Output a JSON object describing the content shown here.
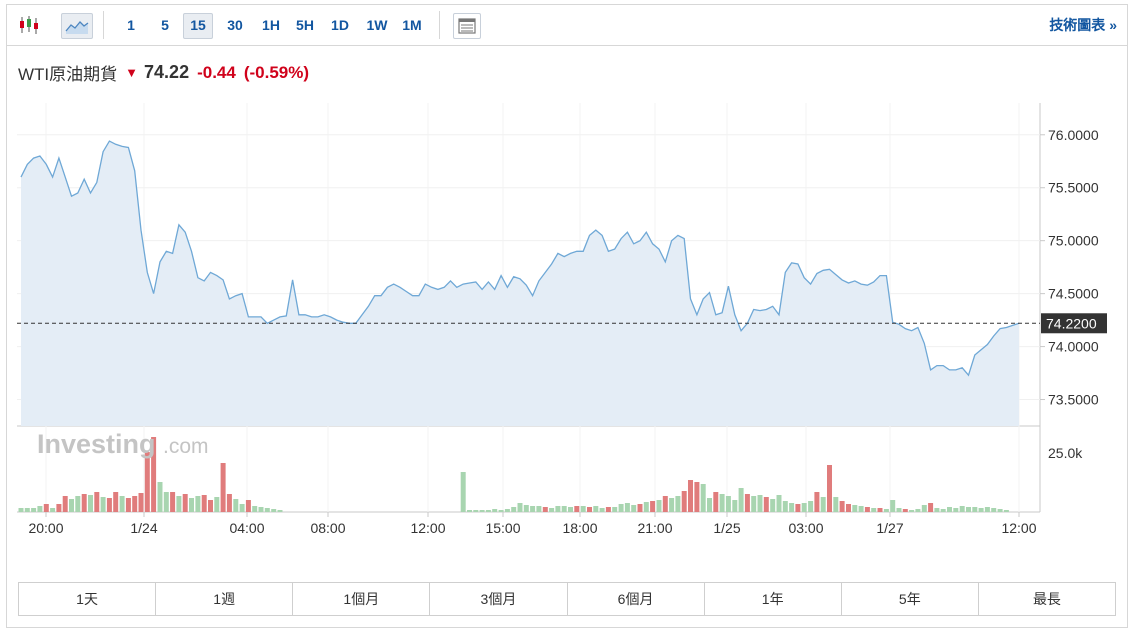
{
  "toolbar": {
    "chart_type_icons": [
      "candlestick-icon",
      "area-chart-icon"
    ],
    "intervals": [
      "1",
      "5",
      "15",
      "30",
      "1H",
      "5H",
      "1D",
      "1W",
      "1M"
    ],
    "active_interval": "15",
    "table_icon": "data-table-icon",
    "tech_link": "技術圖表 »"
  },
  "instrument": {
    "name": "WTI原油期貨",
    "direction_icon": "down-arrow-icon",
    "price": "74.22",
    "change": "-0.44",
    "change_pct": "(-0.59%)"
  },
  "watermark": {
    "brand": "Investing",
    "suffix": ".com"
  },
  "ranges": [
    "1天",
    "1週",
    "1個月",
    "3個月",
    "6個月",
    "1年",
    "5年",
    "最長"
  ],
  "colors": {
    "line": "#6fa8d6",
    "area": "#e4edf6",
    "vol_up": "#a8d5b0",
    "vol_down": "#e07c7c",
    "down": "#d0021b",
    "link": "#1256a0"
  },
  "chart_data": {
    "type": "area",
    "current_value_label": "74.2200",
    "y_ticks": [
      "76.0000",
      "75.5000",
      "75.0000",
      "74.5000",
      "74.0000",
      "73.5000"
    ],
    "ylim": [
      73.25,
      76.3
    ],
    "volume_tick": "25.0k",
    "x_tick_labels": [
      "20:00",
      "1/24",
      "04:00",
      "08:00",
      "12:00",
      "15:00",
      "18:00",
      "21:00",
      "1/25",
      "03:00",
      "1/27",
      "12:00"
    ],
    "price": [
      75.6,
      75.72,
      75.78,
      75.8,
      75.72,
      75.6,
      75.78,
      75.6,
      75.42,
      75.45,
      75.58,
      75.45,
      75.55,
      75.84,
      75.94,
      75.91,
      75.89,
      75.88,
      75.66,
      75.1,
      74.7,
      74.5,
      74.8,
      74.9,
      74.88,
      75.15,
      75.08,
      74.9,
      74.65,
      74.62,
      74.7,
      74.67,
      74.63,
      74.45,
      74.48,
      74.5,
      74.28,
      74.28,
      74.28,
      74.22,
      74.25,
      74.28,
      74.29,
      74.63,
      74.3,
      74.3,
      74.28,
      74.28,
      74.3,
      74.28,
      74.25,
      74.23,
      74.22,
      74.22,
      74.3,
      74.38,
      74.48,
      74.48,
      74.56,
      74.59,
      74.56,
      74.52,
      74.48,
      74.48,
      74.59,
      74.56,
      74.54,
      74.56,
      74.62,
      74.56,
      74.59,
      74.6,
      74.61,
      74.54,
      74.61,
      74.54,
      74.67,
      74.56,
      74.66,
      74.64,
      74.58,
      74.48,
      74.62,
      74.7,
      74.78,
      74.88,
      74.85,
      74.88,
      74.9,
      74.9,
      75.05,
      75.1,
      75.05,
      74.9,
      74.92,
      75.02,
      75.08,
      74.97,
      75.0,
      75.08,
      74.97,
      74.92,
      74.8,
      75.0,
      75.05,
      75.02,
      74.45,
      74.3,
      74.45,
      74.51,
      74.3,
      74.32,
      74.57,
      74.3,
      74.15,
      74.22,
      74.35,
      74.34,
      74.35,
      74.38,
      74.3,
      74.7,
      74.79,
      74.78,
      74.65,
      74.59,
      74.69,
      74.72,
      74.73,
      74.68,
      74.63,
      74.6,
      74.62,
      74.59,
      74.58,
      74.61,
      74.67,
      74.67,
      74.23,
      74.21,
      74.17,
      74.15,
      74.18,
      74.03,
      73.78,
      73.82,
      73.82,
      73.78,
      73.78,
      73.8,
      73.73,
      73.92,
      73.97,
      74.02,
      74.1,
      74.17,
      74.18,
      74.2,
      74.22
    ],
    "volume": [
      0.4,
      0.4,
      0.4,
      0.6,
      0.8,
      0.4,
      0.8,
      1.6,
      1.3,
      1.6,
      1.8,
      1.7,
      2.0,
      1.5,
      1.4,
      2.0,
      1.6,
      1.4,
      1.6,
      1.9,
      6.0,
      7.5,
      3.0,
      2.0,
      2.0,
      1.6,
      1.8,
      1.4,
      1.6,
      1.7,
      1.2,
      1.5,
      4.9,
      1.8,
      1.3,
      0.8,
      1.2,
      0.6,
      0.5,
      0.4,
      0.3,
      0.2,
      0,
      0,
      0,
      0,
      0,
      0,
      0,
      0,
      0,
      0,
      0,
      0,
      0,
      0,
      0,
      0,
      0,
      0,
      0,
      0,
      0,
      0,
      0,
      0,
      0,
      0,
      0,
      0,
      4.0,
      0.2,
      0.2,
      0.2,
      0.2,
      0.3,
      0.2,
      0.3,
      0.5,
      0.9,
      0.7,
      0.6,
      0.6,
      0.5,
      0.4,
      0.6,
      0.6,
      0.5,
      0.6,
      0.6,
      0.5,
      0.6,
      0.4,
      0.5,
      0.5,
      0.8,
      0.9,
      0.7,
      0.8,
      1.0,
      1.1,
      1.2,
      1.6,
      1.4,
      1.6,
      2.1,
      3.2,
      3.0,
      2.8,
      1.4,
      2.0,
      1.8,
      1.6,
      1.2,
      2.4,
      1.8,
      1.6,
      1.7,
      1.5,
      1.3,
      1.7,
      1.1,
      0.9,
      0.8,
      0.9,
      1.1,
      2.0,
      1.5,
      4.7,
      1.5,
      1.1,
      0.8,
      0.7,
      0.6,
      0.5,
      0.4,
      0.4,
      0.3,
      1.2,
      0.4,
      0.3,
      0.2,
      0.3,
      0.7,
      0.9,
      0.4,
      0.3,
      0.5,
      0.4,
      0.6,
      0.5,
      0.5,
      0.4,
      0.5,
      0.4,
      0.3,
      0.2
    ],
    "volume_direction": [
      "u",
      "u",
      "u",
      "u",
      "d",
      "u",
      "d",
      "d",
      "u",
      "u",
      "d",
      "u",
      "d",
      "u",
      "d",
      "d",
      "u",
      "d",
      "d",
      "d",
      "d",
      "d",
      "u",
      "u",
      "d",
      "u",
      "d",
      "u",
      "u",
      "d",
      "d",
      "u",
      "d",
      "d",
      "u",
      "u",
      "d",
      "u",
      "u",
      "u",
      "u",
      "u",
      "u",
      "u",
      "u",
      "u",
      "u",
      "u",
      "u",
      "u",
      "u",
      "u",
      "u",
      "u",
      "u",
      "u",
      "u",
      "u",
      "u",
      "u",
      "u",
      "u",
      "u",
      "u",
      "u",
      "u",
      "u",
      "u",
      "u",
      "u",
      "u",
      "u",
      "u",
      "u",
      "u",
      "u",
      "u",
      "u",
      "u",
      "u",
      "u",
      "u",
      "u",
      "d",
      "u",
      "u",
      "u",
      "u",
      "d",
      "u",
      "d",
      "u",
      "u",
      "d",
      "u",
      "u",
      "u",
      "u",
      "d",
      "u",
      "d",
      "u",
      "d",
      "u",
      "u",
      "d",
      "d",
      "d",
      "u",
      "u",
      "d",
      "u",
      "u",
      "u",
      "u",
      "d",
      "u",
      "u",
      "d",
      "u",
      "u",
      "u",
      "u",
      "d",
      "u",
      "u",
      "d",
      "u",
      "d",
      "u",
      "d",
      "d",
      "u",
      "u",
      "d",
      "u",
      "d",
      "u",
      "u",
      "u",
      "d",
      "u",
      "u",
      "u",
      "d",
      "u",
      "u",
      "u",
      "u",
      "u",
      "u",
      "u",
      "u",
      "u",
      "u",
      "u",
      "u"
    ]
  }
}
